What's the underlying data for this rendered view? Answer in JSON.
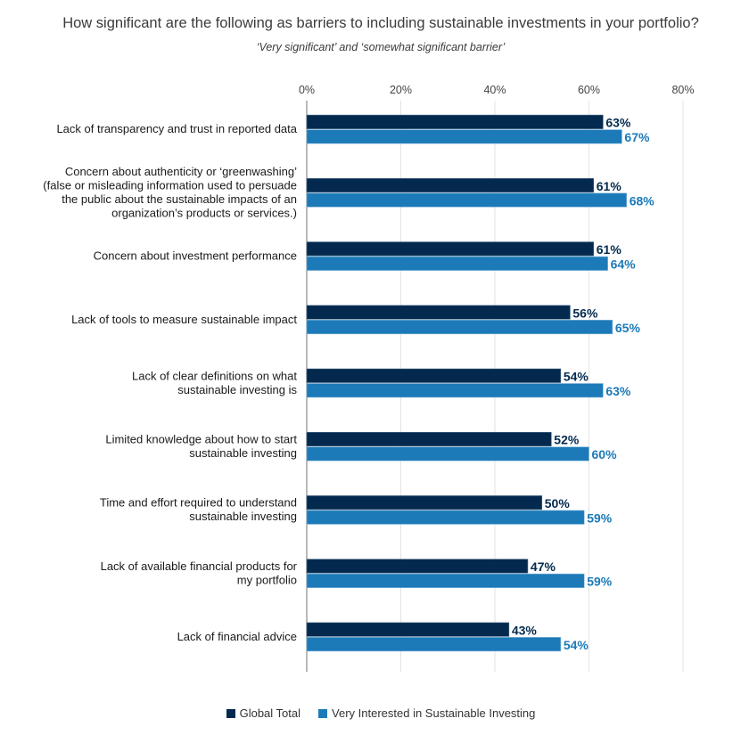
{
  "chart_data": {
    "type": "bar",
    "orientation": "horizontal",
    "title": "How significant are the following as barriers to including sustainable investments in your portfolio?",
    "subtitle": "‘Very significant’ and ‘somewhat significant barrier’",
    "xlabel": "",
    "ylabel": "",
    "xlim": [
      0,
      80
    ],
    "xticks": [
      0,
      20,
      40,
      60,
      80
    ],
    "xtick_labels": [
      "0%",
      "20%",
      "40%",
      "60%",
      "80%"
    ],
    "grid": true,
    "legend_position": "bottom",
    "categories": [
      [
        "Lack of transparency and trust in reported data"
      ],
      [
        "Concern about authenticity or ‘greenwashing’",
        "(false or misleading information used to persuade",
        "the public about the sustainable impacts of an",
        "organization’s products or services.)"
      ],
      [
        "Concern about investment performance"
      ],
      [
        "Lack of tools to measure sustainable impact"
      ],
      [
        "Lack of clear definitions on what",
        "sustainable investing is"
      ],
      [
        "Limited knowledge about how to start",
        "sustainable investing"
      ],
      [
        "Time and effort required to understand",
        "sustainable investing"
      ],
      [
        "Lack of available financial products for",
        "my portfolio"
      ],
      [
        "Lack of financial advice"
      ]
    ],
    "series": [
      {
        "name": "Global Total",
        "color": "#032a4e",
        "values": [
          63,
          61,
          61,
          56,
          54,
          52,
          50,
          47,
          43
        ]
      },
      {
        "name": "Very Interested in Sustainable Investing",
        "color": "#1c7ab8",
        "values": [
          67,
          68,
          64,
          65,
          63,
          60,
          59,
          59,
          54
        ]
      }
    ],
    "value_suffix": "%"
  }
}
